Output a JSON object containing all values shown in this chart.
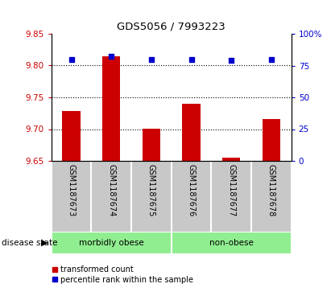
{
  "title": "GDS5056 / 7993223",
  "categories": [
    "GSM1187673",
    "GSM1187674",
    "GSM1187675",
    "GSM1187676",
    "GSM1187677",
    "GSM1187678"
  ],
  "bar_values": [
    9.728,
    9.815,
    9.701,
    9.74,
    9.655,
    9.716
  ],
  "bar_bottom": 9.65,
  "scatter_pct": [
    80,
    82,
    80,
    80,
    79,
    80
  ],
  "ylim_left": [
    9.65,
    9.85
  ],
  "ylim_right": [
    0,
    100
  ],
  "yticks_left": [
    9.65,
    9.7,
    9.75,
    9.8,
    9.85
  ],
  "yticks_right": [
    0,
    25,
    50,
    75,
    100
  ],
  "ytick_labels_right": [
    "0",
    "25",
    "50",
    "75",
    "100%"
  ],
  "hlines": [
    9.7,
    9.75,
    9.8
  ],
  "bar_color": "#cc0000",
  "scatter_color": "#0000cc",
  "group1_label": "morbidly obese",
  "group1_indices": [
    0,
    1,
    2
  ],
  "group2_label": "non-obese",
  "group2_indices": [
    3,
    4,
    5
  ],
  "group_color": "#90ee90",
  "disease_label": "disease state",
  "legend_bar": "transformed count",
  "legend_scatter": "percentile rank within the sample",
  "tick_color_left": "#cc0000",
  "tick_color_right": "#0000cc",
  "bar_width": 0.45,
  "label_area_color": "#c8c8c8",
  "fig_width": 4.11,
  "fig_height": 3.63,
  "dpi": 100
}
